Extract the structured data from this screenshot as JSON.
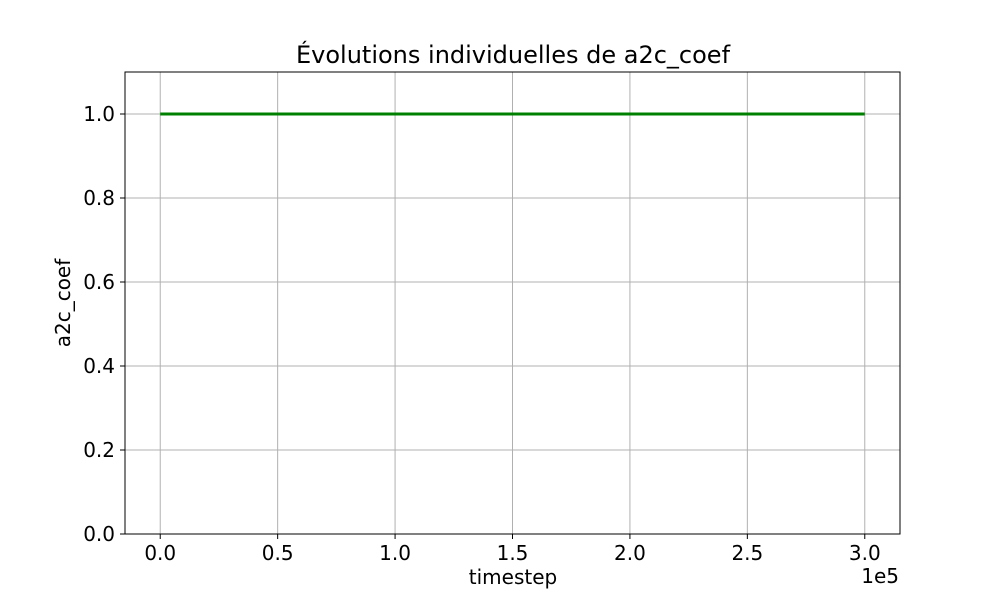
{
  "chart_data": {
    "type": "line",
    "title": "Évolutions individuelles de a2c_coef",
    "xlabel": "timestep",
    "ylabel": "a2c_coef",
    "x_offset_text": "1e5",
    "xlim": [
      -0.15,
      3.15
    ],
    "ylim": [
      0.0,
      1.1
    ],
    "xticks": [
      0.0,
      0.5,
      1.0,
      1.5,
      2.0,
      2.5,
      3.0
    ],
    "xtick_labels": [
      "0.0",
      "0.5",
      "1.0",
      "1.5",
      "2.0",
      "2.5",
      "3.0"
    ],
    "yticks": [
      0.0,
      0.2,
      0.4,
      0.6,
      0.8,
      1.0
    ],
    "ytick_labels": [
      "0.0",
      "0.2",
      "0.4",
      "0.6",
      "0.8",
      "1.0"
    ],
    "grid": true,
    "series": [
      {
        "color": "#008000",
        "x": [
          0.0,
          0.5,
          1.0,
          1.5,
          2.0,
          2.5,
          3.0
        ],
        "y": [
          1.0,
          1.0,
          1.0,
          1.0,
          1.0,
          1.0,
          1.0
        ]
      }
    ]
  }
}
